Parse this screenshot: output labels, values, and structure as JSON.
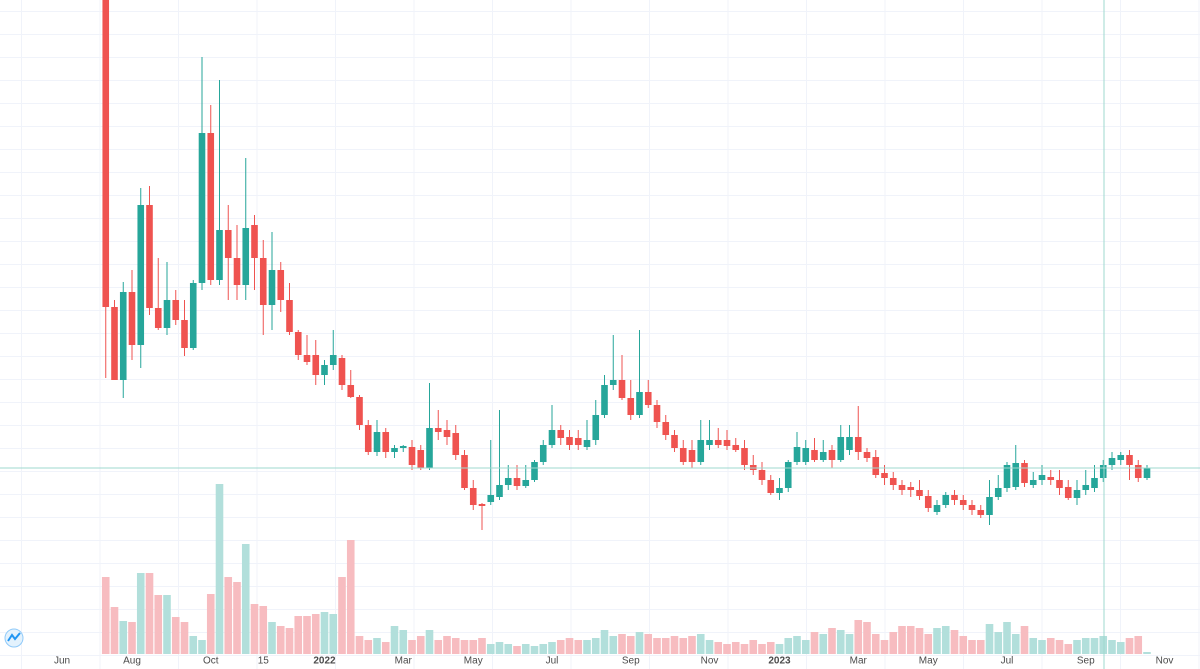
{
  "chart_data": {
    "type": "candlestick",
    "categories": [
      "Jun",
      null,
      null,
      null,
      null,
      null,
      null,
      null,
      "Aug",
      null,
      null,
      null,
      null,
      null,
      null,
      null,
      null,
      "Oct",
      null,
      null,
      null,
      null,
      null,
      "15",
      null,
      null,
      null,
      null,
      null,
      null,
      "2022",
      null,
      null,
      null,
      null,
      null,
      null,
      null,
      null,
      "Mar",
      null,
      null,
      null,
      null,
      null,
      null,
      null,
      "May",
      null,
      null,
      null,
      null,
      null,
      null,
      null,
      null,
      "Jul",
      null,
      null,
      null,
      null,
      null,
      null,
      null,
      null,
      "Sep",
      null,
      null,
      null,
      null,
      null,
      null,
      null,
      null,
      "Nov",
      null,
      null,
      null,
      null,
      null,
      null,
      null,
      "2023",
      null,
      null,
      null,
      null,
      null,
      null,
      null,
      null,
      "Mar",
      null,
      null,
      null,
      null,
      null,
      null,
      null,
      "May",
      null,
      null,
      null,
      null,
      null,
      null,
      null,
      null,
      "Jul",
      null,
      null,
      null,
      null,
      null,
      null,
      null,
      null,
      "Sep",
      null,
      null,
      null,
      null,
      null,
      null,
      null,
      null,
      "Nov"
    ],
    "open": [
      null,
      null,
      null,
      null,
      null,
      669,
      362,
      289,
      377,
      324,
      464,
      361,
      341,
      369,
      349,
      321,
      386,
      536,
      389,
      439,
      411,
      384,
      444,
      411,
      364,
      399,
      369,
      337,
      314,
      314,
      294,
      304,
      311,
      284,
      272,
      244,
      217,
      237,
      217,
      221,
      222,
      219,
      201,
      241,
      239,
      236,
      214,
      181,
      165,
      167,
      172,
      184,
      191,
      183,
      189,
      207,
      224,
      239,
      232,
      231,
      222,
      229,
      254,
      284,
      289,
      271,
      254,
      277,
      264,
      247,
      234,
      221,
      219,
      207,
      224,
      229,
      229,
      224,
      221,
      204,
      199,
      189,
      176,
      181,
      207,
      207,
      219,
      209,
      219,
      209,
      219,
      232,
      217,
      212,
      196,
      191,
      184,
      182,
      179,
      173,
      157,
      164,
      174,
      169,
      164,
      159,
      154,
      172,
      181,
      182,
      206,
      184,
      189,
      192,
      189,
      182,
      171,
      179,
      181,
      191,
      204,
      209,
      214,
      204,
      191,
      null,
      null
    ],
    "high": [
      null,
      null,
      null,
      null,
      null,
      669,
      369,
      387,
      399,
      481,
      483,
      411,
      407,
      379,
      369,
      389,
      612,
      564,
      589,
      464,
      444,
      511,
      454,
      429,
      437,
      407,
      386,
      339,
      334,
      329,
      309,
      339,
      314,
      299,
      274,
      249,
      249,
      241,
      224,
      224,
      229,
      224,
      286,
      259,
      249,
      244,
      219,
      189,
      166,
      229,
      259,
      204,
      204,
      204,
      209,
      229,
      264,
      244,
      239,
      239,
      249,
      269,
      294,
      334,
      314,
      289,
      339,
      289,
      269,
      254,
      239,
      229,
      229,
      249,
      249,
      241,
      239,
      231,
      229,
      214,
      207,
      194,
      191,
      209,
      237,
      229,
      231,
      229,
      224,
      244,
      244,
      263,
      221,
      219,
      204,
      197,
      189,
      187,
      189,
      179,
      169,
      177,
      179,
      174,
      169,
      164,
      189,
      194,
      207,
      224,
      209,
      197,
      204,
      199,
      199,
      189,
      189,
      199,
      204,
      209,
      217,
      217,
      219,
      209,
      204,
      null,
      null
    ],
    "low": [
      null,
      null,
      null,
      null,
      null,
      291,
      289,
      271,
      309,
      301,
      354,
      339,
      334,
      344,
      313,
      319,
      379,
      384,
      384,
      369,
      369,
      369,
      379,
      334,
      339,
      357,
      334,
      309,
      304,
      284,
      284,
      299,
      279,
      271,
      239,
      214,
      213,
      211,
      211,
      217,
      199,
      199,
      199,
      229,
      224,
      209,
      179,
      159,
      139,
      164,
      169,
      179,
      179,
      181,
      187,
      204,
      221,
      224,
      219,
      219,
      219,
      224,
      251,
      279,
      269,
      249,
      251,
      261,
      241,
      229,
      217,
      204,
      201,
      204,
      219,
      221,
      219,
      217,
      199,
      194,
      184,
      174,
      169,
      177,
      204,
      204,
      207,
      207,
      201,
      207,
      214,
      209,
      207,
      191,
      184,
      179,
      174,
      172,
      169,
      157,
      154,
      161,
      164,
      159,
      154,
      151,
      144,
      169,
      177,
      179,
      182,
      181,
      184,
      184,
      174,
      169,
      164,
      174,
      177,
      187,
      199,
      204,
      189,
      187,
      189,
      null,
      null
    ],
    "close": [
      null,
      null,
      null,
      null,
      null,
      362,
      289,
      377,
      324,
      464,
      361,
      341,
      369,
      349,
      321,
      386,
      536,
      389,
      439,
      411,
      384,
      441,
      411,
      364,
      399,
      369,
      337,
      314,
      307,
      294,
      304,
      314,
      284,
      272,
      244,
      217,
      237,
      217,
      221,
      223,
      204,
      201,
      241,
      237,
      232,
      214,
      181,
      164,
      163,
      174,
      184,
      191,
      183,
      189,
      207,
      224,
      239,
      231,
      224,
      224,
      229,
      254,
      284,
      289,
      271,
      254,
      277,
      264,
      247,
      234,
      221,
      207,
      207,
      229,
      229,
      224,
      223,
      219,
      204,
      199,
      189,
      176,
      181,
      207,
      222,
      221,
      209,
      217,
      209,
      232,
      232,
      217,
      211,
      194,
      191,
      184,
      179,
      179,
      173,
      161,
      164,
      174,
      169,
      164,
      159,
      154,
      172,
      181,
      204,
      206,
      186,
      189,
      194,
      189,
      181,
      171,
      179,
      184,
      191,
      204,
      211,
      214,
      204,
      191,
      201,
      null,
      null
    ],
    "volume": [
      null,
      null,
      null,
      null,
      null,
      77,
      47,
      33,
      32,
      81,
      81,
      59,
      59,
      37,
      32,
      18,
      14,
      60,
      170,
      77,
      72,
      110,
      50,
      48,
      32,
      28,
      26,
      38,
      38,
      40,
      42,
      40,
      77,
      114,
      18,
      14,
      16,
      12,
      28,
      24,
      14,
      18,
      24,
      14,
      18,
      16,
      14,
      14,
      16,
      10,
      12,
      10,
      8,
      10,
      8,
      10,
      12,
      14,
      16,
      14,
      14,
      16,
      24,
      18,
      20,
      18,
      22,
      20,
      16,
      16,
      18,
      16,
      18,
      20,
      14,
      12,
      10,
      12,
      10,
      14,
      10,
      12,
      10,
      16,
      18,
      14,
      22,
      20,
      26,
      24,
      20,
      34,
      32,
      20,
      14,
      22,
      28,
      28,
      26,
      20,
      26,
      28,
      24,
      18,
      14,
      14,
      30,
      22,
      32,
      20,
      28,
      16,
      14,
      16,
      14,
      10,
      14,
      16,
      16,
      18,
      14,
      12,
      16,
      18,
      2,
      null,
      null
    ],
    "ylim": [
      0,
      669
    ],
    "volume_ylim": [
      0,
      654
    ],
    "up_color": "#26a69a",
    "down_color": "#ef5350",
    "volume_up_color": "#b2dfdb",
    "volume_down_color": "#f7bcc0"
  }
}
